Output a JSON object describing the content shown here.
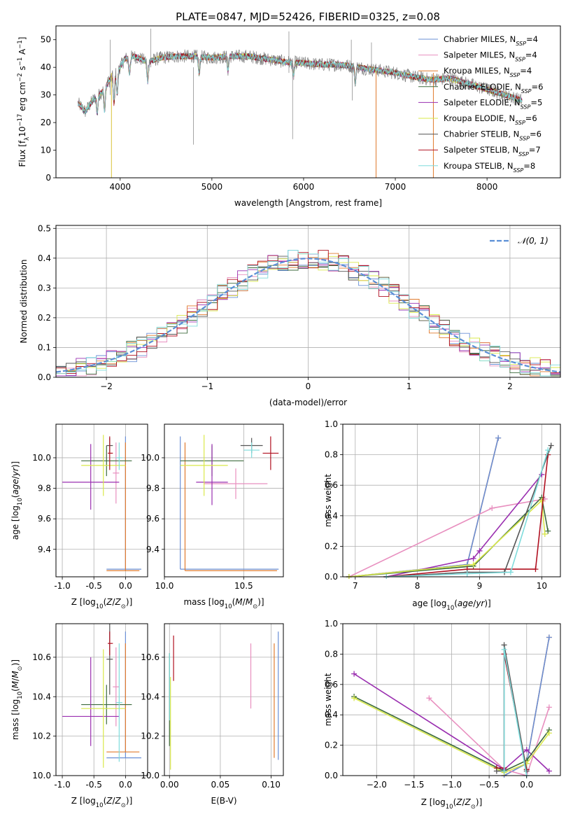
{
  "figure": {
    "title": "PLATE=0847, MJD=52426, FIBERID=0325, z=0.08"
  },
  "colors": {
    "Chabrier MILES": "#6a8fd6",
    "Salpeter MILES": "#e88fbf",
    "Kroupa MILES": "#e07b2e",
    "Chabrier ELODIE": "#3d6b3d",
    "Salpeter ELODIE": "#9a2fb0",
    "Kroupa ELODIE": "#d9e84a",
    "Chabrier STELIB": "#555555",
    "Salpeter STELIB": "#b01020",
    "Kroupa STELIB": "#7fdcdc",
    "data": "#808080",
    "normal": "#5b8fd6"
  },
  "legend_spectrum": [
    {
      "prefix": "Chabrier MILES, N",
      "sub": "SSP",
      "suffix": "=4",
      "key": "Chabrier MILES"
    },
    {
      "prefix": "Salpeter MILES, N",
      "sub": "SSP",
      "suffix": "=4",
      "key": "Salpeter MILES"
    },
    {
      "prefix": "Kroupa MILES, N",
      "sub": "SSP",
      "suffix": "=4",
      "key": "Kroupa MILES"
    },
    {
      "prefix": "Chabrier ELODIE, N",
      "sub": "SSP",
      "suffix": "=6",
      "key": "Chabrier ELODIE"
    },
    {
      "prefix": "Salpeter ELODIE, N",
      "sub": "SSP",
      "suffix": "=5",
      "key": "Salpeter ELODIE"
    },
    {
      "prefix": "Kroupa ELODIE, N",
      "sub": "SSP",
      "suffix": "=6",
      "key": "Kroupa ELODIE"
    },
    {
      "prefix": "Chabrier STELIB, N",
      "sub": "SSP",
      "suffix": "=6",
      "key": "Chabrier STELIB"
    },
    {
      "prefix": "Salpeter STELIB, N",
      "sub": "SSP",
      "suffix": "=7",
      "key": "Salpeter STELIB"
    },
    {
      "prefix": "Kroupa STELIB, N",
      "sub": "SSP",
      "suffix": "=8",
      "key": "Kroupa STELIB"
    }
  ],
  "chart_data": [
    {
      "id": "spectrum",
      "type": "line",
      "xlabel": "wavelength [Angstrom, rest frame]",
      "ylabel": "Flux [f",
      "ylabel_parts": [
        "Flux [f",
        "λ",
        "10",
        "−17",
        " erg cm",
        "−2",
        " s",
        "−1",
        " A",
        "−1",
        "]"
      ],
      "xlim": [
        3300,
        8800
      ],
      "ylim": [
        0,
        55
      ],
      "xticks": [
        4000,
        5000,
        6000,
        7000,
        8000
      ],
      "yticks": [
        0,
        10,
        20,
        30,
        40,
        50
      ],
      "grid": false,
      "legend": "upper right",
      "continuum": [
        [
          3540,
          27
        ],
        [
          3620,
          24
        ],
        [
          3700,
          28
        ],
        [
          3800,
          31
        ],
        [
          3900,
          36
        ],
        [
          3960,
          38
        ],
        [
          4050,
          43
        ],
        [
          4150,
          44
        ],
        [
          4300,
          42
        ],
        [
          4450,
          43.5
        ],
        [
          4600,
          44
        ],
        [
          4800,
          44
        ],
        [
          5000,
          43.5
        ],
        [
          5200,
          44
        ],
        [
          5400,
          44
        ],
        [
          5600,
          43
        ],
        [
          5800,
          42
        ],
        [
          6000,
          41.5
        ],
        [
          6200,
          41
        ],
        [
          6400,
          41
        ],
        [
          6600,
          40
        ],
        [
          6800,
          39
        ],
        [
          7000,
          38
        ],
        [
          7200,
          36.5
        ],
        [
          7400,
          35.5
        ],
        [
          7600,
          36
        ],
        [
          7800,
          34
        ],
        [
          8000,
          32
        ],
        [
          8200,
          30
        ],
        [
          8380,
          28
        ]
      ]
    },
    {
      "id": "residuals",
      "type": "histogram",
      "xlabel": "(data-model)/error",
      "ylabel": "Normed distribution",
      "xlim": [
        -2.5,
        2.5
      ],
      "ylim": [
        0,
        0.51
      ],
      "xticks": [
        -2,
        -1,
        0,
        1,
        2
      ],
      "yticks": [
        0.0,
        0.1,
        0.2,
        0.3,
        0.4,
        0.5
      ],
      "grid": true,
      "legend": "upper right",
      "legend_label": "𝒩(0, 1)",
      "bin_width": 0.1
    },
    {
      "id": "age-vs-Z",
      "type": "errorbar",
      "xlabel": "Z [log10(Z/Z☉)]",
      "ylabel": "age  [log10(age/yr)]",
      "xlim": [
        -1.1,
        0.35
      ],
      "ylim": [
        9.22,
        10.22
      ],
      "xticks": [
        -1.0,
        -0.5,
        0.0
      ],
      "yticks": [
        9.4,
        9.6,
        9.8,
        10.0
      ],
      "grid": true,
      "points": [
        {
          "series": "Chabrier MILES",
          "x": 0.0,
          "xerr": [
            0.3,
            0.25
          ],
          "y": 9.27,
          "yerr": [
            0.0,
            0.87
          ]
        },
        {
          "series": "Kroupa MILES",
          "x": 0.0,
          "xerr": [
            0.3,
            0.22
          ],
          "y": 9.26,
          "yerr": [
            0.0,
            0.84
          ]
        },
        {
          "series": "Salpeter MILES",
          "x": -0.15,
          "xerr": [
            0.05,
            0.05
          ],
          "y": 9.9,
          "yerr": [
            0.2,
            0.2
          ]
        },
        {
          "series": "Chabrier ELODIE",
          "x": -0.3,
          "xerr": [
            0.4,
            0.4
          ],
          "y": 9.98,
          "yerr": [
            0.1,
            0.1
          ]
        },
        {
          "series": "Salpeter ELODIE",
          "x": -0.55,
          "xerr": [
            0.45,
            0.45
          ],
          "y": 9.84,
          "yerr": [
            0.18,
            0.25
          ]
        },
        {
          "series": "Kroupa ELODIE",
          "x": -0.35,
          "xerr": [
            0.35,
            0.35
          ],
          "y": 9.95,
          "yerr": [
            0.2,
            0.2
          ]
        },
        {
          "series": "Chabrier STELIB",
          "x": -0.25,
          "xerr": [
            0.05,
            0.05
          ],
          "y": 10.08,
          "yerr": [
            0.05,
            0.05
          ]
        },
        {
          "series": "Salpeter STELIB",
          "x": -0.25,
          "xerr": [
            0.03,
            0.05
          ],
          "y": 10.03,
          "yerr": [
            0.11,
            0.11
          ]
        },
        {
          "series": "Kroupa STELIB",
          "x": -0.1,
          "xerr": [
            0.05,
            0.05
          ],
          "y": 10.0,
          "yerr": [
            0.08,
            0.1
          ]
        }
      ]
    },
    {
      "id": "age-vs-mass",
      "type": "errorbar",
      "xlabel": "mass [log10(M/M☉)]",
      "ylabel": "",
      "xlim": [
        10.0,
        10.75
      ],
      "ylim": [
        9.22,
        10.22
      ],
      "xticks": [
        10.0,
        10.5
      ],
      "yticks": [
        9.4,
        9.6,
        9.8,
        10.0
      ],
      "grid": true,
      "points": [
        {
          "series": "Chabrier MILES",
          "x": 10.1,
          "xerr": [
            0.0,
            0.62
          ],
          "y": 9.27,
          "yerr": [
            0.0,
            0.87
          ]
        },
        {
          "series": "Kroupa MILES",
          "x": 10.13,
          "xerr": [
            0.0,
            0.58
          ],
          "y": 9.26,
          "yerr": [
            0.0,
            0.84
          ]
        },
        {
          "series": "Salpeter MILES",
          "x": 10.45,
          "xerr": [
            0.2,
            0.2
          ],
          "y": 9.83,
          "yerr": [
            0.1,
            0.1
          ]
        },
        {
          "series": "Chabrier ELODIE",
          "x": 10.3,
          "xerr": [
            0.2,
            0.2
          ],
          "y": 9.98,
          "yerr": [
            0.1,
            0.1
          ]
        },
        {
          "series": "Salpeter ELODIE",
          "x": 10.3,
          "xerr": [
            0.1,
            0.1
          ],
          "y": 9.84,
          "yerr": [
            0.15,
            0.25
          ]
        },
        {
          "series": "Kroupa ELODIE",
          "x": 10.25,
          "xerr": [
            0.15,
            0.15
          ],
          "y": 9.95,
          "yerr": [
            0.2,
            0.2
          ]
        },
        {
          "series": "Chabrier STELIB",
          "x": 10.55,
          "xerr": [
            0.07,
            0.07
          ],
          "y": 10.08,
          "yerr": [
            0.05,
            0.05
          ]
        },
        {
          "series": "Salpeter STELIB",
          "x": 10.67,
          "xerr": [
            0.05,
            0.05
          ],
          "y": 10.03,
          "yerr": [
            0.11,
            0.11
          ]
        },
        {
          "series": "Kroupa STELIB",
          "x": 10.55,
          "xerr": [
            0.05,
            0.05
          ],
          "y": 10.05,
          "yerr": [
            0.05,
            0.05
          ]
        }
      ]
    },
    {
      "id": "mass-weight-vs-age",
      "type": "line",
      "xlabel": "age  [log10(age/yr)]",
      "ylabel": "mass weight",
      "xlim": [
        6.8,
        10.3
      ],
      "ylim": [
        0,
        1
      ],
      "xticks": [
        7,
        8,
        9,
        10
      ],
      "yticks": [
        0.0,
        0.2,
        0.4,
        0.6,
        0.8,
        1.0
      ],
      "grid": true,
      "series": [
        {
          "name": "Kroupa MILES",
          "x": [
            6.9,
            8.8,
            9.3
          ],
          "y": [
            0.0,
            0.08,
            0.91
          ]
        },
        {
          "name": "Chabrier MILES",
          "x": [
            6.9,
            8.8,
            9.3
          ],
          "y": [
            0.0,
            0.08,
            0.91
          ]
        },
        {
          "name": "Salpeter MILES",
          "x": [
            6.9,
            9.2,
            10.05
          ],
          "y": [
            0.0,
            0.45,
            0.51
          ]
        },
        {
          "name": "Salpeter ELODIE",
          "x": [
            7.5,
            8.9,
            9.0,
            10.0
          ],
          "y": [
            0.0,
            0.12,
            0.17,
            0.67
          ]
        },
        {
          "name": "Chabrier ELODIE",
          "x": [
            6.9,
            8.9,
            10.0,
            10.1
          ],
          "y": [
            0.0,
            0.07,
            0.52,
            0.3
          ]
        },
        {
          "name": "Kroupa ELODIE",
          "x": [
            6.9,
            8.9,
            10.0,
            10.05
          ],
          "y": [
            0.0,
            0.08,
            0.5,
            0.28
          ]
        },
        {
          "name": "Salpeter STELIB",
          "x": [
            7.5,
            8.8,
            9.9,
            10.1
          ],
          "y": [
            0.0,
            0.05,
            0.05,
            0.8
          ]
        },
        {
          "name": "Chabrier STELIB",
          "x": [
            7.5,
            8.8,
            9.4,
            10.15
          ],
          "y": [
            0.0,
            0.03,
            0.03,
            0.86
          ]
        },
        {
          "name": "Kroupa STELIB",
          "x": [
            7.5,
            8.8,
            9.5,
            10.1
          ],
          "y": [
            0.0,
            0.02,
            0.03,
            0.83
          ]
        }
      ]
    },
    {
      "id": "mass-vs-Z",
      "type": "errorbar",
      "xlabel": "Z [log10(Z/Z☉)]",
      "ylabel": "mass [log10(M/M☉)]",
      "xlim": [
        -1.1,
        0.35
      ],
      "ylim": [
        10.0,
        10.77
      ],
      "xticks": [
        -1.0,
        -0.5,
        0.0
      ],
      "yticks": [
        10.0,
        10.2,
        10.4,
        10.6
      ],
      "grid": true,
      "points": [
        {
          "series": "Chabrier MILES",
          "x": 0.0,
          "xerr": [
            0.3,
            0.25
          ],
          "y": 10.09,
          "yerr": [
            0.0,
            0.64
          ]
        },
        {
          "series": "Kroupa MILES",
          "x": 0.0,
          "xerr": [
            0.3,
            0.22
          ],
          "y": 10.12,
          "yerr": [
            0.0,
            0.55
          ]
        },
        {
          "series": "Salpeter MILES",
          "x": -0.15,
          "xerr": [
            0.05,
            0.05
          ],
          "y": 10.45,
          "yerr": [
            0.2,
            0.2
          ]
        },
        {
          "series": "Chabrier ELODIE",
          "x": -0.3,
          "xerr": [
            0.4,
            0.4
          ],
          "y": 10.36,
          "yerr": [
            0.1,
            0.1
          ]
        },
        {
          "series": "Salpeter ELODIE",
          "x": -0.55,
          "xerr": [
            0.45,
            0.45
          ],
          "y": 10.3,
          "yerr": [
            0.15,
            0.3
          ]
        },
        {
          "series": "Kroupa ELODIE",
          "x": -0.35,
          "xerr": [
            0.35,
            0.35
          ],
          "y": 10.34,
          "yerr": [
            0.3,
            0.3
          ]
        },
        {
          "series": "Chabrier STELIB",
          "x": -0.25,
          "xerr": [
            0.05,
            0.05
          ],
          "y": 10.59,
          "yerr": [
            0.18,
            0.18
          ]
        },
        {
          "series": "Salpeter STELIB",
          "x": -0.25,
          "xerr": [
            0.03,
            0.05
          ],
          "y": 10.67,
          "yerr": [
            0.06,
            0.06
          ]
        },
        {
          "series": "Kroupa STELIB",
          "x": -0.1,
          "xerr": [
            0.05,
            0.05
          ],
          "y": 10.37,
          "yerr": [
            0.3,
            0.3
          ]
        }
      ]
    },
    {
      "id": "mass-vs-ebv",
      "type": "errorbar",
      "xlabel": "E(B-V)",
      "ylabel": "",
      "xlim": [
        -0.005,
        0.112
      ],
      "ylim": [
        10.0,
        10.77
      ],
      "xticks": [
        0.0,
        0.05,
        0.1
      ],
      "yticks": [
        10.0,
        10.2,
        10.4,
        10.6
      ],
      "grid": true,
      "points": [
        {
          "series": "Chabrier MILES",
          "x": 0.107,
          "xerr": [
            0,
            0
          ],
          "y": 10.35,
          "yerr": [
            0.27,
            0.38
          ]
        },
        {
          "series": "Kroupa MILES",
          "x": 0.103,
          "xerr": [
            0,
            0
          ],
          "y": 10.35,
          "yerr": [
            0.26,
            0.32
          ]
        },
        {
          "series": "Salpeter MILES",
          "x": 0.08,
          "xerr": [
            0,
            0
          ],
          "y": 10.5,
          "yerr": [
            0.16,
            0.17
          ]
        },
        {
          "series": "Chabrier ELODIE",
          "x": 0.0,
          "xerr": [
            0,
            0
          ],
          "y": 10.35,
          "yerr": [
            0.2,
            0.27
          ]
        },
        {
          "series": "Kroupa ELODIE",
          "x": 0.001,
          "xerr": [
            0,
            0
          ],
          "y": 10.25,
          "yerr": [
            0.22,
            0.25
          ]
        },
        {
          "series": "Salpeter STELIB",
          "x": 0.004,
          "xerr": [
            0,
            0
          ],
          "y": 10.6,
          "yerr": [
            0.12,
            0.11
          ]
        },
        {
          "series": "Kroupa STELIB",
          "x": 0.0,
          "xerr": [
            0,
            0
          ],
          "y": 10.45,
          "yerr": [
            0.17,
            0.17
          ]
        }
      ]
    },
    {
      "id": "mass-weight-vs-Z",
      "type": "line",
      "xlabel": "Z [log10(Z/Z☉)]",
      "ylabel": "mass weight",
      "xlim": [
        -2.45,
        0.45
      ],
      "ylim": [
        0,
        1
      ],
      "xticks": [
        -2.0,
        -1.5,
        -1.0,
        -0.5,
        0.0
      ],
      "yticks": [
        0.0,
        0.2,
        0.4,
        0.6,
        0.8,
        1.0
      ],
      "grid": true,
      "series": [
        {
          "name": "Kroupa MILES",
          "x": [
            -0.3,
            0.0,
            0.3
          ],
          "y": [
            0.0,
            0.08,
            0.91
          ]
        },
        {
          "name": "Chabrier MILES",
          "x": [
            -0.3,
            0.0,
            0.3
          ],
          "y": [
            0.0,
            0.08,
            0.91
          ]
        },
        {
          "name": "Salpeter MILES",
          "x": [
            -1.3,
            -0.3,
            0.0,
            0.3
          ],
          "y": [
            0.51,
            0.04,
            0.0,
            0.45
          ]
        },
        {
          "name": "Salpeter ELODIE",
          "x": [
            -2.3,
            -0.3,
            0.0,
            0.3
          ],
          "y": [
            0.67,
            0.04,
            0.17,
            0.03
          ]
        },
        {
          "name": "Chabrier ELODIE",
          "x": [
            -2.3,
            -0.3,
            0.0,
            0.3
          ],
          "y": [
            0.52,
            0.03,
            0.1,
            0.3
          ]
        },
        {
          "name": "Kroupa ELODIE",
          "x": [
            -2.3,
            -0.3,
            0.0,
            0.3
          ],
          "y": [
            0.51,
            0.02,
            0.08,
            0.28
          ]
        },
        {
          "name": "Salpeter STELIB",
          "x": [
            -0.4,
            -0.3,
            -0.3,
            0.0
          ],
          "y": [
            0.05,
            0.05,
            0.8,
            0.04
          ]
        },
        {
          "name": "Chabrier STELIB",
          "x": [
            -0.4,
            -0.3,
            -0.3,
            0.0
          ],
          "y": [
            0.03,
            0.03,
            0.86,
            0.03
          ]
        },
        {
          "name": "Kroupa STELIB",
          "x": [
            -0.3,
            -0.3,
            0.0
          ],
          "y": [
            0.03,
            0.83,
            0.0
          ]
        }
      ]
    }
  ]
}
